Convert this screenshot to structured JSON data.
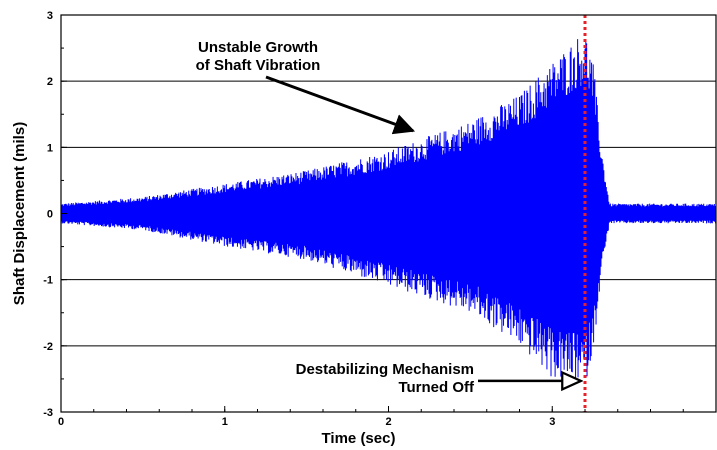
{
  "chart_data": {
    "type": "line",
    "title": "",
    "xlabel": "Time (sec)",
    "ylabel": "Shaft Displacement (mils)",
    "xlim": [
      0,
      4.0
    ],
    "ylim": [
      -3,
      3
    ],
    "xticks": [
      0,
      1,
      2,
      3
    ],
    "xtick_labels": [
      "0",
      "1",
      "2",
      "3"
    ],
    "yticks": [
      -3,
      -2,
      -1,
      0,
      1,
      2,
      3
    ],
    "ytick_labels": [
      "-3",
      "-2",
      "-1",
      "0",
      "1",
      "2",
      "3"
    ],
    "grid": "horizontal",
    "series": [
      {
        "color": "#0000ff",
        "envelope": {
          "x": [
            0,
            0.5,
            1.0,
            1.5,
            2.0,
            2.5,
            2.8,
            3.0,
            3.2,
            3.25,
            3.3,
            3.35,
            4.0
          ],
          "y_max": [
            0.15,
            0.25,
            0.45,
            0.65,
            0.95,
            1.4,
            1.8,
            2.3,
            2.8,
            2.3,
            1.0,
            0.15,
            0.15
          ],
          "y_min": [
            -0.15,
            -0.25,
            -0.5,
            -0.7,
            -1.1,
            -1.5,
            -2.0,
            -2.5,
            -2.6,
            -2.1,
            -0.9,
            -0.15,
            -0.15
          ]
        }
      }
    ],
    "marker_line": {
      "x": 3.2,
      "color": "#e8202a",
      "style": "dotted"
    },
    "annotations": [
      {
        "lines": [
          "Unstable Growth",
          "of Shaft Vibration"
        ],
        "arrow_to": {
          "x": 2.15,
          "y": 1.25
        }
      },
      {
        "lines": [
          "Destabilizing Mechanism",
          "Turned Off"
        ],
        "arrow_to": {
          "x": 3.2,
          "y": -2.5
        }
      }
    ]
  }
}
